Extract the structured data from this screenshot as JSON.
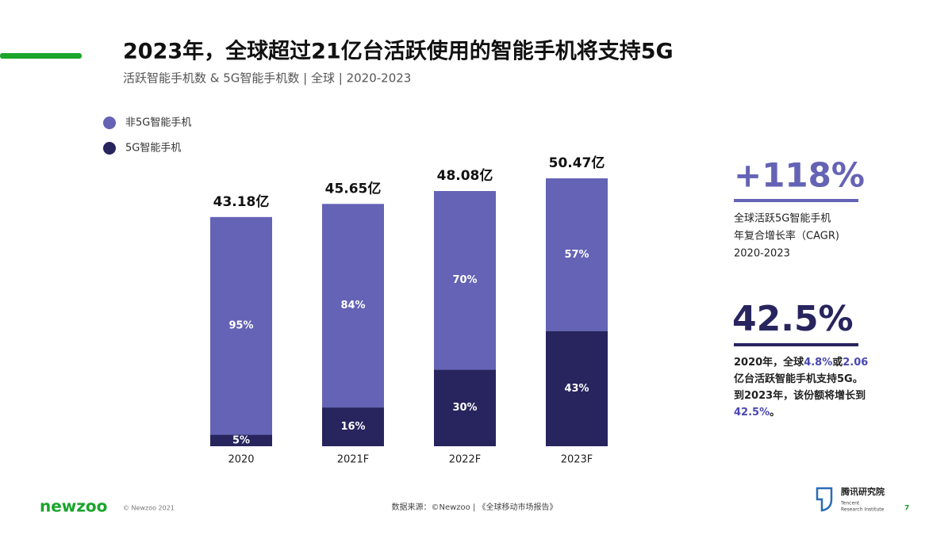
{
  "header": {
    "title": "2023年，全球超过21亿台活跃使用的智能手机将支持5G",
    "subtitle": "活跃智能手机数 & 5G智能手机数 | 全球 | 2020-2023"
  },
  "chart_data": {
    "type": "stacked_bar",
    "categories": [
      "2020",
      "2021F",
      "2022F",
      "2023F"
    ],
    "totals": {
      "values": [
        43.18,
        45.65,
        48.08,
        50.47
      ],
      "value_labels": [
        "43.18亿",
        "45.65亿",
        "48.08亿",
        "50.47亿"
      ]
    },
    "series": [
      {
        "name": "非5G智能手机",
        "color": "#6563b5",
        "values": [
          95,
          84,
          70,
          57
        ],
        "value_labels": [
          "95%",
          "84%",
          "70%",
          "57%"
        ]
      },
      {
        "name": "5G智能手机",
        "color": "#27245e",
        "values": [
          5,
          16,
          30,
          43
        ],
        "value_labels": [
          "5%",
          "16%",
          "30%",
          "43%"
        ]
      }
    ]
  },
  "callouts": [
    {
      "value": "+118%",
      "lines": [
        "全球活跃5G智能手机",
        "年复合增长率（CAGR)",
        "2020-2023"
      ]
    },
    {
      "value": "42.5%",
      "parts": [
        {
          "text": "2020年，全球",
          "highlight": false
        },
        {
          "text": "4.8%",
          "highlight": true
        },
        {
          "text": "或",
          "highlight": false
        },
        {
          "text": "2.06",
          "highlight": true
        },
        {
          "text": "亿台活跃智能手机支持5G。到2023年，该份额将增长到",
          "highlight": false
        },
        {
          "text": "42.5%",
          "highlight": true
        },
        {
          "text": "。",
          "highlight": false
        }
      ]
    }
  ],
  "footer": {
    "brand": "newzoo",
    "copyright": "© Newzoo 2021",
    "source": "数据来源：©Newzoo | 《全球移动市场报告》",
    "institute": "腾讯研究院",
    "institute_en_1": "Tencent",
    "institute_en_2": "Research Institute",
    "page": "7"
  }
}
